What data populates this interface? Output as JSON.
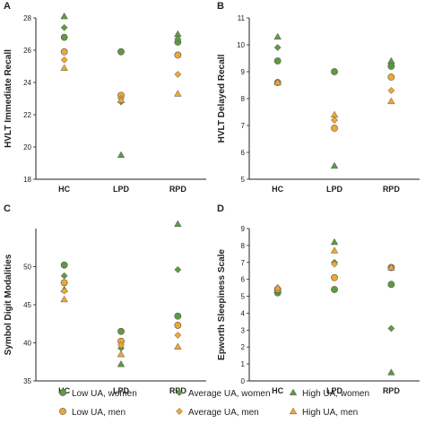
{
  "legend": {
    "items": [
      {
        "label": "Low UA, women",
        "marker": "circle",
        "color": "#5e9b3f"
      },
      {
        "label": "Average UA, women",
        "marker": "diamond",
        "color": "#5e9b3f"
      },
      {
        "label": "High UA, women",
        "marker": "triangle",
        "color": "#5e9b3f"
      },
      {
        "label": "Low UA, men",
        "marker": "circle",
        "color": "#f0a733"
      },
      {
        "label": "Average UA, men",
        "marker": "diamond",
        "color": "#f0a733"
      },
      {
        "label": "High UA, men",
        "marker": "triangle",
        "color": "#f0a733"
      }
    ]
  },
  "colors": {
    "women": "#5e9b3f",
    "men": "#f0a733",
    "axis": "#222222"
  },
  "chart_data": [
    {
      "panel": "A",
      "type": "scatter",
      "ylabel": "HVLT Immediate Recall",
      "categories": [
        "HC",
        "LPD",
        "RPD"
      ],
      "ylim": [
        18,
        28
      ],
      "yticks": [
        18,
        20,
        22,
        24,
        26,
        28
      ],
      "series": [
        {
          "name": "Low UA, women",
          "values": [
            26.8,
            25.9,
            26.5
          ]
        },
        {
          "name": "Average UA, women",
          "values": [
            27.4,
            22.8,
            26.7
          ]
        },
        {
          "name": "High UA, women",
          "values": [
            28.1,
            19.5,
            27.0
          ]
        },
        {
          "name": "Low UA, men",
          "values": [
            25.9,
            23.2,
            25.7
          ]
        },
        {
          "name": "Average UA, men",
          "values": [
            25.4,
            23.0,
            24.5
          ]
        },
        {
          "name": "High UA, men",
          "values": [
            24.9,
            22.9,
            23.3
          ]
        }
      ]
    },
    {
      "panel": "B",
      "type": "scatter",
      "ylabel": "HVLT Delayed Recall",
      "categories": [
        "HC",
        "LPD",
        "RPD"
      ],
      "ylim": [
        5,
        11
      ],
      "yticks": [
        5,
        6,
        7,
        8,
        9,
        10,
        11
      ],
      "series": [
        {
          "name": "Low UA, women",
          "values": [
            9.4,
            9.0,
            9.2
          ]
        },
        {
          "name": "Average UA, women",
          "values": [
            9.9,
            7.2,
            9.3
          ]
        },
        {
          "name": "High UA, women",
          "values": [
            10.3,
            5.5,
            9.4
          ]
        },
        {
          "name": "Low UA, men",
          "values": [
            8.6,
            6.9,
            8.8
          ]
        },
        {
          "name": "Average UA, men",
          "values": [
            8.6,
            7.2,
            8.3
          ]
        },
        {
          "name": "High UA, men",
          "values": [
            8.6,
            7.4,
            7.9
          ]
        }
      ]
    },
    {
      "panel": "C",
      "type": "scatter",
      "ylabel": "Symbol Digit Modalities",
      "categories": [
        "HC",
        "LPD",
        "RPD"
      ],
      "ylim": [
        35,
        55
      ],
      "yticks": [
        35,
        40,
        45,
        50
      ],
      "series": [
        {
          "name": "Low UA, women",
          "values": [
            50.2,
            41.5,
            43.5
          ]
        },
        {
          "name": "Average UA, women",
          "values": [
            48.8,
            39.3,
            49.6
          ]
        },
        {
          "name": "High UA, women",
          "values": [
            47.0,
            37.2,
            55.6
          ]
        },
        {
          "name": "Low UA, men",
          "values": [
            47.9,
            40.2,
            42.3
          ]
        },
        {
          "name": "Average UA, men",
          "values": [
            46.8,
            39.7,
            41.0
          ]
        },
        {
          "name": "High UA, men",
          "values": [
            45.7,
            38.5,
            39.5
          ]
        }
      ]
    },
    {
      "panel": "D",
      "type": "scatter",
      "ylabel": "Epworth Sleepiness Scale",
      "categories": [
        "HC",
        "LPD",
        "RPD"
      ],
      "ylim": [
        0,
        9
      ],
      "yticks": [
        0,
        1,
        2,
        3,
        4,
        5,
        6,
        7,
        8,
        9
      ],
      "series": [
        {
          "name": "Low UA, women",
          "values": [
            5.2,
            5.4,
            5.7
          ]
        },
        {
          "name": "Average UA, women",
          "values": [
            5.3,
            7.0,
            3.1
          ]
        },
        {
          "name": "High UA, women",
          "values": [
            5.4,
            8.2,
            0.5
          ]
        },
        {
          "name": "Low UA, men",
          "values": [
            5.4,
            6.1,
            6.7
          ]
        },
        {
          "name": "Average UA, men",
          "values": [
            5.5,
            6.9,
            6.7
          ]
        },
        {
          "name": "High UA, men",
          "values": [
            5.5,
            7.7,
            6.7
          ]
        }
      ]
    }
  ]
}
